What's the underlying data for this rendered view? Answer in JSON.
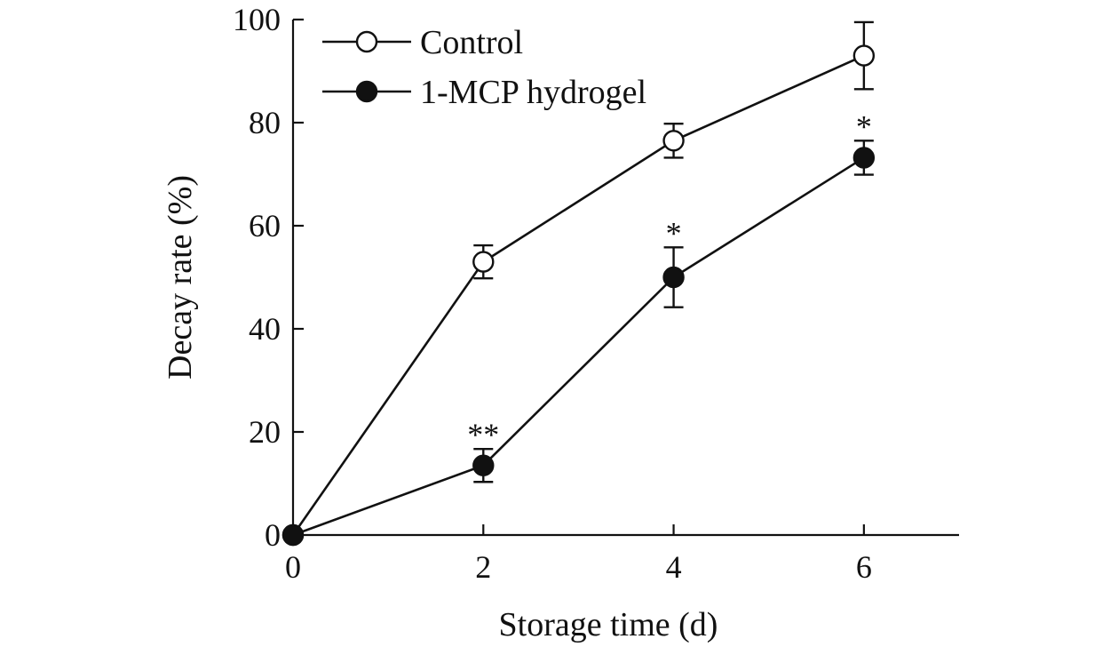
{
  "chart_data": {
    "type": "line",
    "xlabel": "Storage time (d)",
    "ylabel": "Decay rate (%)",
    "x": [
      0,
      2,
      4,
      6
    ],
    "xticks": [
      "0",
      "2",
      "4",
      "6"
    ],
    "xlim": [
      0,
      7
    ],
    "ylim": [
      0,
      100
    ],
    "yticks": [
      "0",
      "20",
      "40",
      "60",
      "80",
      "100"
    ],
    "legend_position": "top-left",
    "series": [
      {
        "name": "Control",
        "marker": "open-circle",
        "values": [
          0,
          53,
          76.5,
          93
        ],
        "errors": [
          0,
          3.2,
          3.3,
          6.5
        ],
        "annotations": [
          "",
          "",
          "",
          ""
        ]
      },
      {
        "name": "1-MCP hydrogel",
        "marker": "filled-circle",
        "values": [
          0,
          13.5,
          50,
          73.2
        ],
        "errors": [
          0,
          3.2,
          5.8,
          3.3
        ],
        "annotations": [
          "",
          "**",
          "*",
          "*"
        ]
      }
    ]
  }
}
